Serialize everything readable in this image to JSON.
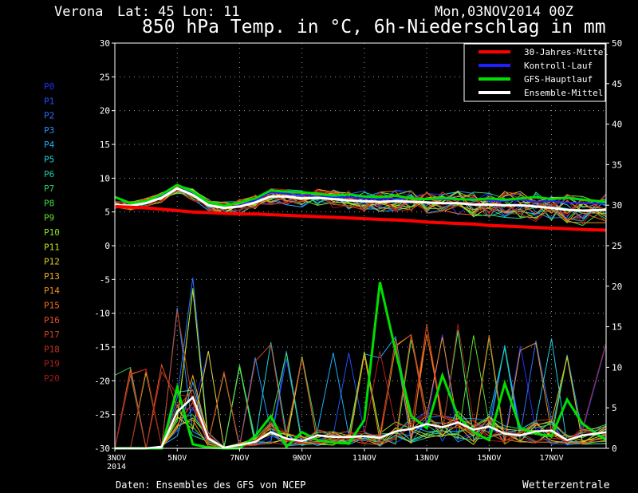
{
  "header": {
    "location": "Verona",
    "coords": "Lat: 45 Lon: 11",
    "run": "Mon,03NOV2014 00Z",
    "title": "850 hPa Temp. in °C, 6h-Niederschlag in mm"
  },
  "footer": {
    "source": "Daten: Ensembles des GFS von NCEP",
    "brand": "Wetterzentrale"
  },
  "members": [
    {
      "name": "P0",
      "color": "#2030ff"
    },
    {
      "name": "P1",
      "color": "#2050ff"
    },
    {
      "name": "P2",
      "color": "#2a70ff"
    },
    {
      "name": "P3",
      "color": "#2a90ff"
    },
    {
      "name": "P4",
      "color": "#20b0ff"
    },
    {
      "name": "P5",
      "color": "#20d0e0"
    },
    {
      "name": "P6",
      "color": "#20d0a0"
    },
    {
      "name": "P7",
      "color": "#30d060"
    },
    {
      "name": "P8",
      "color": "#40e040"
    },
    {
      "name": "P9",
      "color": "#60e030"
    },
    {
      "name": "P10",
      "color": "#90e020"
    },
    {
      "name": "P11",
      "color": "#c0e020"
    },
    {
      "name": "P12",
      "color": "#e0d020"
    },
    {
      "name": "P13",
      "color": "#f0b020"
    },
    {
      "name": "P14",
      "color": "#f09020"
    },
    {
      "name": "P15",
      "color": "#f07020"
    },
    {
      "name": "P16",
      "color": "#e05020"
    },
    {
      "name": "P17",
      "color": "#d04020"
    },
    {
      "name": "P18",
      "color": "#c03020"
    },
    {
      "name": "P19",
      "color": "#b02020"
    },
    {
      "name": "P20",
      "color": "#a01818"
    }
  ],
  "chart_data": {
    "type": "line",
    "title": "850 hPa Temp. in °C, 6h-Niederschlag in mm",
    "x_ticks": [
      "3NOV\n2014",
      "5NOV",
      "7NOV",
      "9NOV",
      "11NOV",
      "13NOV",
      "15NOV",
      "17NOV"
    ],
    "x_tick_days": [
      0,
      2,
      4,
      6,
      8,
      10,
      12,
      14
    ],
    "x_range_days": [
      0,
      15.75
    ],
    "y_left": {
      "label": "°C",
      "range": [
        -30,
        30
      ],
      "ticks": [
        30,
        25,
        20,
        15,
        10,
        5,
        0,
        -5,
        -10,
        -15,
        -20,
        -25,
        -30
      ]
    },
    "y_right": {
      "label": "mm",
      "range": [
        0,
        50
      ],
      "ticks": [
        50,
        45,
        40,
        35,
        30,
        25,
        20,
        15,
        10,
        5,
        0
      ]
    },
    "grid": true,
    "legend_position": "top-right",
    "legend": [
      {
        "label": "30-Jahres-Mittel",
        "color": "#ff0000"
      },
      {
        "label": "Kontroll-Lauf",
        "color": "#2020ff"
      },
      {
        "label": "GFS-Hauptlauf",
        "color": "#00e000"
      },
      {
        "label": "Ensemble-Mittel",
        "color": "#ffffff"
      }
    ],
    "series_temp": {
      "x_days": [
        0,
        0.5,
        1,
        1.5,
        2,
        2.5,
        3,
        3.5,
        4,
        4.5,
        5,
        5.5,
        6,
        6.5,
        7,
        7.5,
        8,
        8.5,
        9,
        9.5,
        10,
        10.5,
        11,
        11.5,
        12,
        12.5,
        13,
        13.5,
        14,
        14.5,
        15,
        15.75
      ],
      "climate_mean": [
        5.8,
        5.7,
        5.6,
        5.4,
        5.2,
        5.0,
        4.9,
        4.8,
        4.7,
        4.7,
        4.6,
        4.5,
        4.4,
        4.3,
        4.2,
        4.1,
        4.0,
        3.9,
        3.8,
        3.7,
        3.5,
        3.4,
        3.3,
        3.2,
        3.0,
        2.9,
        2.8,
        2.7,
        2.6,
        2.5,
        2.4,
        2.3
      ],
      "ensemble_mean": [
        6.0,
        5.9,
        6.3,
        7.1,
        8.5,
        7.5,
        6.0,
        5.6,
        5.8,
        6.4,
        7.3,
        7.3,
        7.0,
        7.1,
        6.9,
        6.7,
        6.6,
        6.5,
        6.6,
        6.5,
        6.4,
        6.3,
        6.3,
        6.1,
        6.1,
        6.0,
        6.0,
        5.8,
        5.6,
        5.3,
        5.2,
        5.3
      ],
      "control": [
        6.0,
        5.9,
        6.2,
        7.3,
        9.0,
        7.8,
        6.1,
        5.5,
        6.0,
        6.7,
        7.9,
        7.7,
        7.5,
        7.3,
        7.2,
        7.2,
        7.0,
        6.9,
        7.0,
        7.0,
        6.9,
        6.9,
        6.8,
        7.0,
        6.7,
        6.6,
        6.8,
        6.5,
        6.6,
        6.4,
        6.3,
        6.2
      ],
      "main_run": [
        7.2,
        6.3,
        6.6,
        7.6,
        9.0,
        8.0,
        6.4,
        5.9,
        6.4,
        7.0,
        8.2,
        8.0,
        7.9,
        7.7,
        7.4,
        7.6,
        7.3,
        7.2,
        7.4,
        7.0,
        6.9,
        7.1,
        6.9,
        6.8,
        7.0,
        6.8,
        7.0,
        7.2,
        6.9,
        7.1,
        6.8,
        6.5
      ]
    },
    "series_precip": {
      "x_days": [
        0,
        0.5,
        1,
        1.5,
        2,
        2.5,
        3,
        3.5,
        4,
        4.5,
        5,
        5.5,
        6,
        6.5,
        7,
        7.5,
        8,
        8.5,
        9,
        9.5,
        10,
        10.5,
        11,
        11.5,
        12,
        12.5,
        13,
        13.5,
        14,
        14.5,
        15,
        15.75
      ],
      "ensemble_mean": [
        0,
        0,
        0,
        0.2,
        4.5,
        6.3,
        1.2,
        0.1,
        0.4,
        0.8,
        2.0,
        1.2,
        0.9,
        1.6,
        1.4,
        1.4,
        1.5,
        1.3,
        2.1,
        2.4,
        3.0,
        2.6,
        3.2,
        2.3,
        2.7,
        1.8,
        1.6,
        2.1,
        2.2,
        1.0,
        1.6,
        2.0
      ],
      "main_run": [
        0,
        0,
        0,
        0,
        7.5,
        0.5,
        0.1,
        0,
        0,
        1.5,
        4.0,
        0.2,
        2.0,
        1.0,
        0.7,
        0.6,
        3.5,
        20.5,
        12.0,
        4.0,
        2.5,
        9.0,
        4.0,
        2.0,
        1.0,
        8.0,
        2.5,
        1.8,
        1.5,
        6.0,
        3.0,
        1.0
      ]
    }
  }
}
